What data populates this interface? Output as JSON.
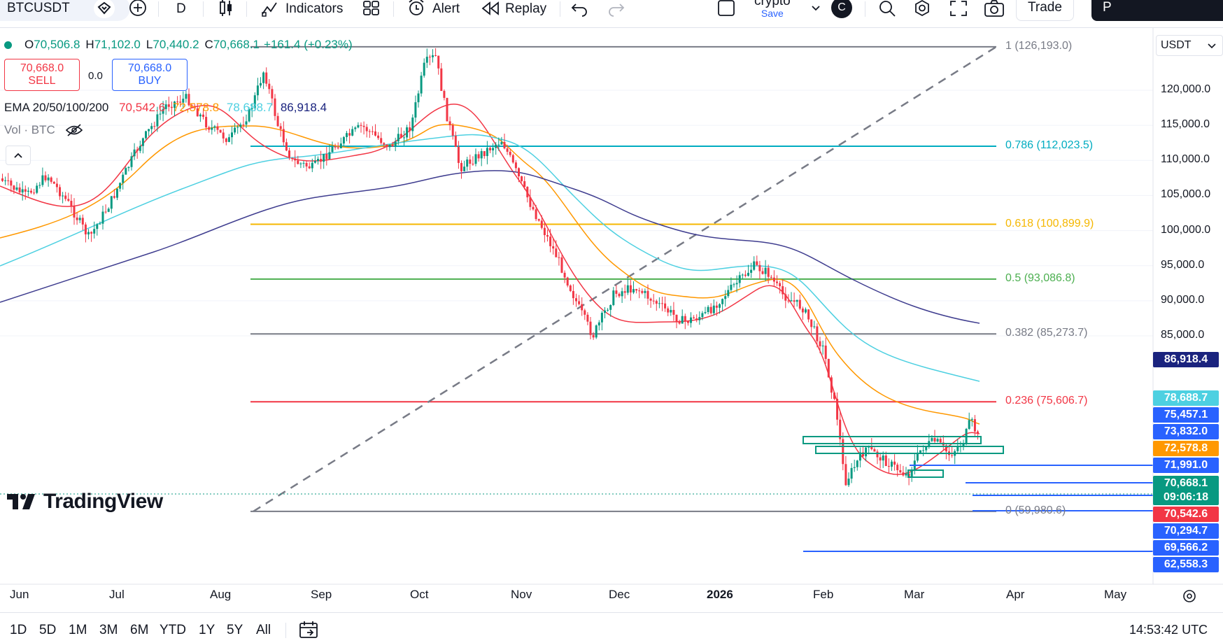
{
  "toolbar": {
    "symbol": "BTCUSDT",
    "interval": "D",
    "indicators_label": "Indicators",
    "alert_label": "Alert",
    "replay_label": "Replay",
    "layout_name": "crypto",
    "layout_save": "Save",
    "user_initial": "C",
    "trade_label": "Trade",
    "publish_initial": "P"
  },
  "legend": {
    "ohlc": [
      {
        "key": "O",
        "value": "70,506.8"
      },
      {
        "key": "H",
        "value": "71,102.0"
      },
      {
        "key": "L",
        "value": "70,440.2"
      },
      {
        "key": "C",
        "value": "70,668.1"
      }
    ],
    "change": "+161.4 (+0.23%)",
    "sell_price": "70,668.0",
    "sell_label": "SELL",
    "spread": "0.0",
    "buy_price": "70,668.0",
    "buy_label": "BUY",
    "ema_label": "EMA 20/50/100/200",
    "ema_values": [
      {
        "value": "70,542.6",
        "color": "#f23645"
      },
      {
        "value": "72,578.8",
        "color": "#ff9800"
      },
      {
        "value": "78,688.7",
        "color": "#4dd0e1"
      },
      {
        "value": "86,918.4",
        "color": "#1a237e"
      }
    ],
    "vol_label": "Vol · BTC"
  },
  "currency": "USDT",
  "chart_data": {
    "type": "line",
    "title": "BTCUSDT",
    "interval": "D",
    "y_axis_ticks": [
      "120,000.0",
      "115,000.0",
      "110,000.0",
      "105,000.0",
      "100,000.0",
      "95,000.0",
      "90,000.0",
      "85,000.0"
    ],
    "y_axis_values": [
      120000,
      115000,
      110000,
      105000,
      100000,
      95000,
      90000,
      85000
    ],
    "x_axis_ticks": [
      "Jun",
      "Jul",
      "Aug",
      "Sep",
      "Oct",
      "Nov",
      "Dec",
      "2026",
      "Feb",
      "Mar",
      "Apr",
      "May"
    ],
    "ylim": [
      59000,
      127000
    ],
    "fib_levels": [
      {
        "level": "1",
        "price": 126193.0,
        "label": "1 (126,193.0)",
        "color": "#787b86"
      },
      {
        "level": "0.786",
        "price": 112023.5,
        "label": "0.786 (112,023.5)",
        "color": "#00acc1"
      },
      {
        "level": "0.618",
        "price": 100899.9,
        "label": "0.618 (100,899.9)",
        "color": "#f5b700"
      },
      {
        "level": "0.5",
        "price": 93086.8,
        "label": "0.5 (93,086.8)",
        "color": "#4caf50"
      },
      {
        "level": "0.382",
        "price": 85273.7,
        "label": "0.382 (85,273.7)",
        "color": "#787b86"
      },
      {
        "level": "0.236",
        "price": 75606.7,
        "label": "0.236 (75,606.7)",
        "color": "#f23645"
      },
      {
        "level": "0",
        "price": 59980.6,
        "label": "0 (59,980.6)",
        "color": "#787b86"
      }
    ],
    "price_tags": [
      {
        "text": "86,918.4",
        "color": "#1a237e",
        "price": 86918.4
      },
      {
        "text": "78,688.7",
        "color": "#4dd0e1",
        "price": 78688.7
      },
      {
        "text": "75,457.1",
        "color": "#2962ff",
        "price": 75457.1
      },
      {
        "text": "73,832.0",
        "color": "#2962ff",
        "price": 73832.0
      },
      {
        "text": "72,578.8",
        "color": "#ff9800",
        "price": 72578.8
      },
      {
        "text": "71,991.0",
        "color": "#2962ff",
        "price": 71991.0
      },
      {
        "text": "70,668.1",
        "color": "#089981",
        "price": 70668.1
      },
      {
        "text": "09:06:18",
        "color": "#089981",
        "price": 0
      },
      {
        "text": "70,542.6",
        "color": "#f23645",
        "price": 70542.6
      },
      {
        "text": "70,294.7",
        "color": "#2962ff",
        "price": 70294.7
      },
      {
        "text": "69,566.2",
        "color": "#2962ff",
        "price": 69566.2
      },
      {
        "text": "62,558.3",
        "color": "#2962ff",
        "price": 62558.3
      }
    ],
    "series": [
      {
        "name": "EMA 20",
        "color": "#f23645"
      },
      {
        "name": "EMA 50",
        "color": "#ff9800"
      },
      {
        "name": "EMA 100",
        "color": "#4dd0e1"
      },
      {
        "name": "EMA 200",
        "color": "#1a237e"
      }
    ]
  },
  "watermark": "TradingView",
  "ranges": [
    "1D",
    "5D",
    "1M",
    "3M",
    "6M",
    "YTD",
    "1Y",
    "5Y",
    "All"
  ],
  "clock": "14:53:42 UTC"
}
